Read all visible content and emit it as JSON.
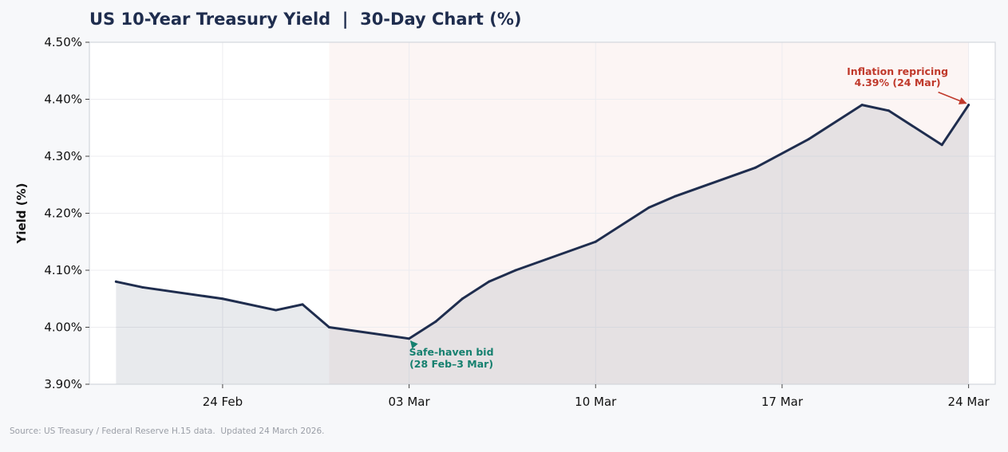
{
  "title": "US 10-Year Treasury Yield  |  30-Day Chart (%)",
  "source_note": "Source: US Treasury / Federal Reserve H.15 data.  Updated 24 March 2026.",
  "colors": {
    "line": "#1f2d4e",
    "area_fill": "#1f2d4e",
    "shade": "#c0392b",
    "annotation_red": "#c0392b",
    "annotation_teal": "#16806f",
    "title": "#1f2d4e"
  },
  "chart_data": {
    "type": "area",
    "ylabel": "Yield (%)",
    "xlabel": "",
    "ylim": [
      3.9,
      4.5
    ],
    "yticks": [
      3.9,
      4.0,
      4.1,
      4.2,
      4.3,
      4.4,
      4.5
    ],
    "ytick_labels": [
      "3.90%",
      "4.00%",
      "4.10%",
      "4.20%",
      "4.30%",
      "4.40%",
      "4.50%"
    ],
    "xlim": [
      "2026-02-19",
      "2026-03-25"
    ],
    "xticks": [
      "2026-02-24",
      "2026-03-03",
      "2026-03-10",
      "2026-03-17",
      "2026-03-24"
    ],
    "xtick_labels": [
      "24 Feb",
      "03 Mar",
      "10 Mar",
      "17 Mar",
      "24 Mar"
    ],
    "grid": true,
    "shaded_region": {
      "from": "2026-02-28",
      "to": "2026-03-24"
    },
    "series": [
      {
        "x": [
          "2026-02-20",
          "2026-02-21",
          "2026-02-24",
          "2026-02-26",
          "2026-02-27",
          "2026-02-28",
          "2026-03-03",
          "2026-03-04",
          "2026-03-05",
          "2026-03-06",
          "2026-03-07",
          "2026-03-10",
          "2026-03-12",
          "2026-03-13",
          "2026-03-16",
          "2026-03-18",
          "2026-03-20",
          "2026-03-21",
          "2026-03-23",
          "2026-03-24"
        ],
        "values": [
          4.08,
          4.07,
          4.05,
          4.03,
          4.04,
          4.0,
          3.98,
          4.01,
          4.05,
          4.08,
          4.1,
          4.15,
          4.21,
          4.23,
          4.28,
          4.33,
          4.39,
          4.38,
          4.32,
          4.39
        ]
      }
    ],
    "annotations": [
      {
        "lines": [
          "Inflation repricing",
          "4.39% (24 Mar)"
        ],
        "point": {
          "x": "2026-03-24",
          "y": 4.39
        },
        "color": "annotation_red"
      },
      {
        "lines": [
          "Safe-haven bid",
          "(28 Feb–3 Mar)"
        ],
        "point": {
          "x": "2026-03-03",
          "y": 3.98
        },
        "color": "annotation_teal"
      }
    ]
  }
}
